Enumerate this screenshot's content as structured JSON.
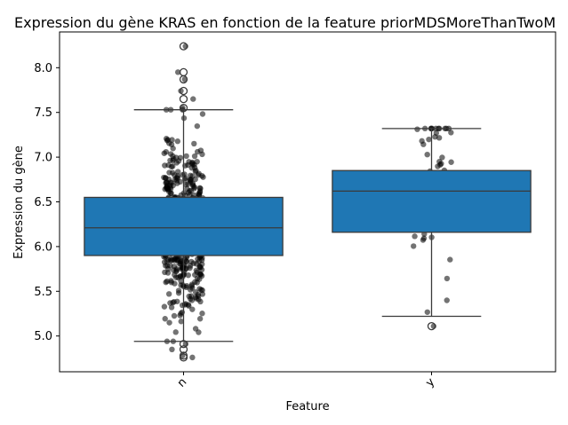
{
  "chart_data": {
    "type": "box",
    "title": "Expression du gène KRAS en fonction de la feature priorMDSMoreThanTwoM",
    "xlabel": "Feature",
    "ylabel": "Expression du gène",
    "categories": [
      "n",
      "y"
    ],
    "ylim": [
      4.6,
      8.4
    ],
    "yticks": [
      "5.0",
      "5.5",
      "6.0",
      "6.5",
      "7.0",
      "7.5",
      "8.0"
    ],
    "grid": false,
    "box_color": "#1f77b4",
    "point_color": "#000000",
    "boxes": [
      {
        "category": "n",
        "whisker_low": 4.94,
        "q1": 5.9,
        "median": 6.21,
        "q3": 6.55,
        "whisker_high": 7.53,
        "outliers": [
          8.24,
          7.95,
          7.87,
          7.74,
          7.65,
          7.55,
          4.91,
          4.85,
          4.78,
          4.76
        ]
      },
      {
        "category": "y",
        "whisker_low": 5.22,
        "q1": 6.16,
        "median": 6.62,
        "q3": 6.85,
        "whisker_high": 7.32,
        "outliers": [
          5.11
        ]
      }
    ]
  }
}
